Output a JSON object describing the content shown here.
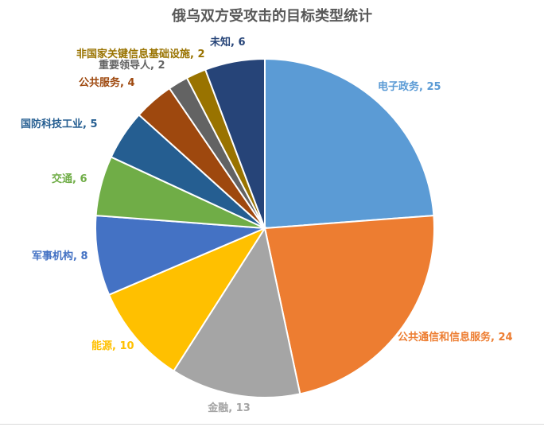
{
  "chart_data": {
    "type": "pie",
    "title": "俄乌双方受攻击的目标类型统计",
    "slices": [
      {
        "label": "电子政务",
        "value": 25,
        "color": "#5B9BD5"
      },
      {
        "label": "公共通信和信息服务",
        "value": 24,
        "color": "#ED7D31"
      },
      {
        "label": "金融",
        "value": 13,
        "color": "#A5A5A5"
      },
      {
        "label": "能源",
        "value": 10,
        "color": "#FFC000"
      },
      {
        "label": "军事机构",
        "value": 8,
        "color": "#4472C4"
      },
      {
        "label": "交通",
        "value": 6,
        "color": "#70AD47"
      },
      {
        "label": "国防科技工业",
        "value": 5,
        "color": "#255E91"
      },
      {
        "label": "公共服务",
        "value": 4,
        "color": "#9E480E"
      },
      {
        "label": "重要领导人",
        "value": 2,
        "color": "#636363"
      },
      {
        "label": "非国家关键信息基础设施",
        "value": 2,
        "color": "#997300"
      },
      {
        "label": "未知",
        "value": 6,
        "color": "#264478"
      }
    ]
  }
}
